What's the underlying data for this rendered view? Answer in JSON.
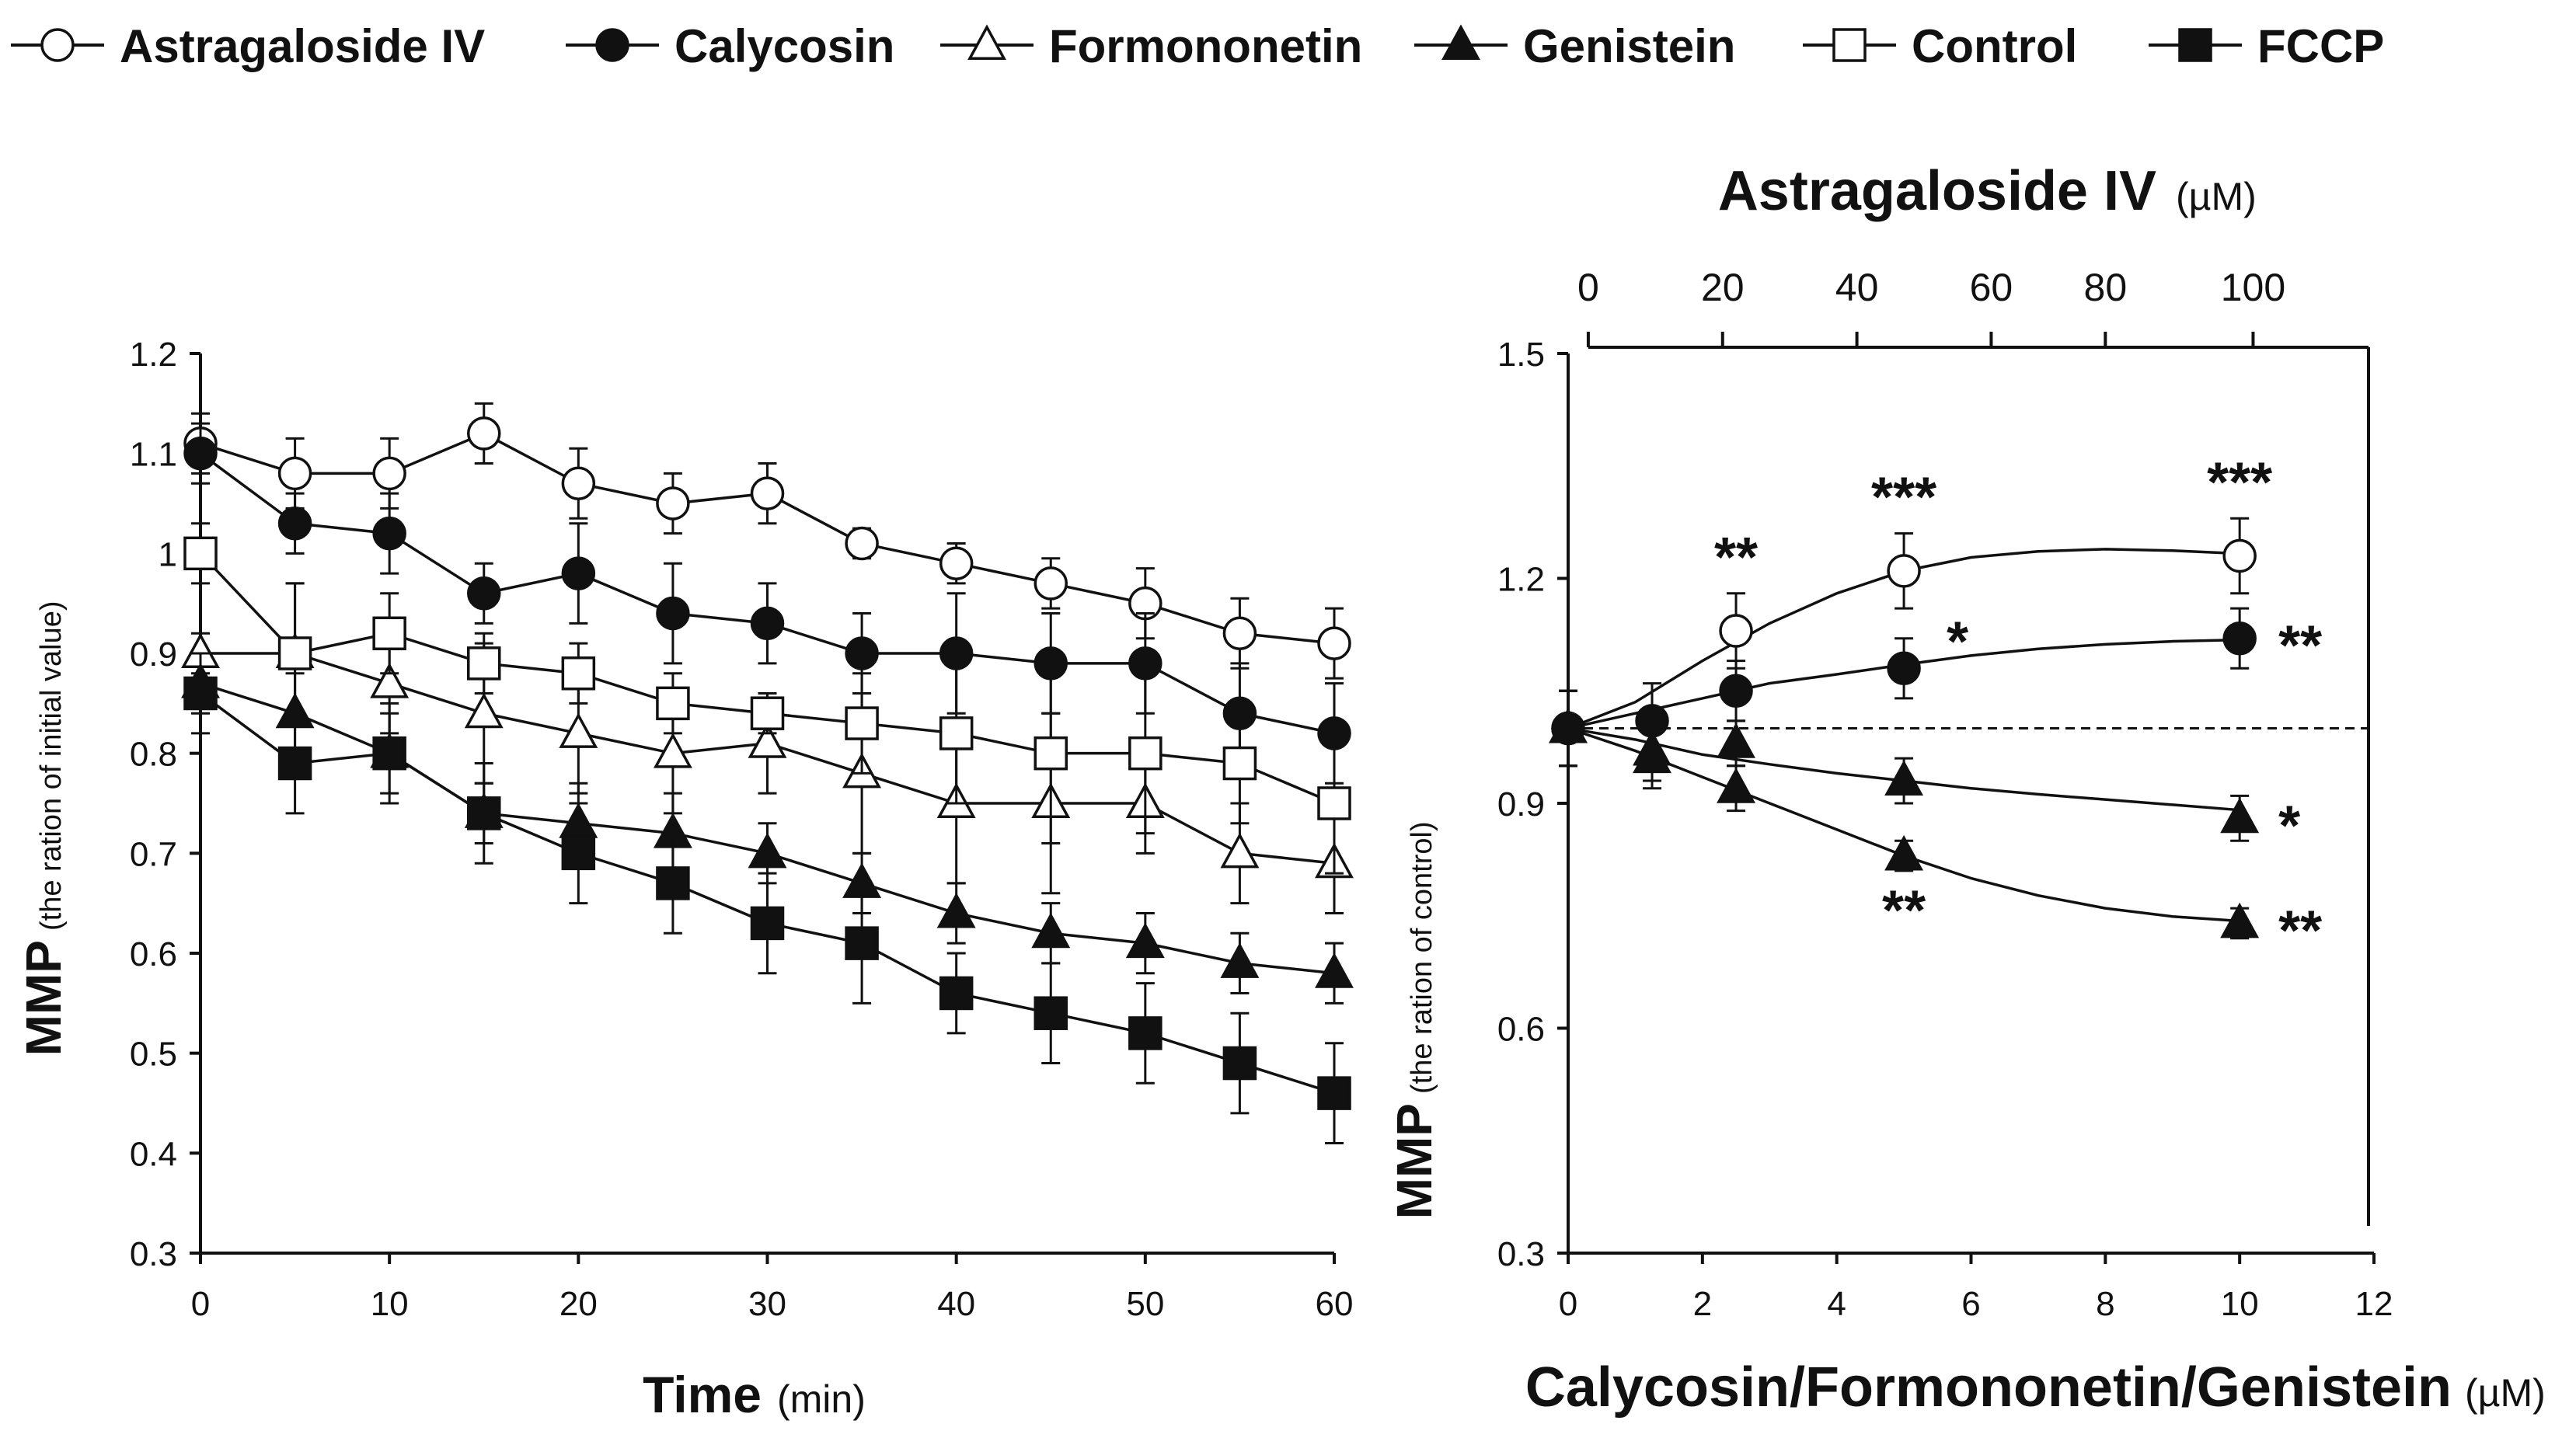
{
  "legend": [
    {
      "name": "Astragaloside IV",
      "marker": "circle",
      "filled": false
    },
    {
      "name": "Calycosin",
      "marker": "circle",
      "filled": true
    },
    {
      "name": "Formononetin",
      "marker": "triangle",
      "filled": false
    },
    {
      "name": "Genistein",
      "marker": "triangle",
      "filled": true
    },
    {
      "name": "Control",
      "marker": "square",
      "filled": false
    },
    {
      "name": "FCCP",
      "marker": "square",
      "filled": true
    }
  ],
  "chart_data": [
    {
      "type": "line",
      "title": "",
      "xlabel": "Time",
      "xlabel_unit": "(min)",
      "ylabel": "MMP",
      "ylabel_note": "(the ration of initial value)",
      "xlim": [
        0,
        60
      ],
      "ylim": [
        0.3,
        1.2
      ],
      "xticks": [
        0,
        10,
        20,
        30,
        40,
        50,
        60
      ],
      "xtick_labels": [
        "0",
        "10",
        "20",
        "30",
        "40",
        "50",
        "60"
      ],
      "yticks": [
        0.3,
        0.4,
        0.5,
        0.6,
        0.7,
        0.8,
        0.9,
        1.0,
        1.1,
        1.2
      ],
      "ytick_labels": [
        "0.3",
        "0.4",
        "0.5",
        "0.6",
        "0.7",
        "0.8",
        "0.9",
        "1",
        "1.1",
        "1.2"
      ],
      "grid": false,
      "x": [
        0,
        5,
        10,
        15,
        20,
        25,
        30,
        35,
        40,
        45,
        50,
        55,
        60
      ],
      "series": [
        {
          "name": "Astragaloside IV",
          "marker": "circle",
          "filled": false,
          "values": [
            1.11,
            1.08,
            1.08,
            1.12,
            1.07,
            1.05,
            1.06,
            1.01,
            0.99,
            0.97,
            0.95,
            0.92,
            0.91
          ],
          "errors": [
            0.03,
            0.035,
            0.035,
            0.03,
            0.035,
            0.03,
            0.03,
            0.015,
            0.02,
            0.025,
            0.035,
            0.035,
            0.035
          ]
        },
        {
          "name": "Calycosin",
          "marker": "circle",
          "filled": true,
          "values": [
            1.1,
            1.03,
            1.02,
            0.96,
            0.98,
            0.94,
            0.93,
            0.9,
            0.9,
            0.89,
            0.89,
            0.84,
            0.82
          ],
          "errors": [
            0.03,
            0.03,
            0.04,
            0.03,
            0.05,
            0.05,
            0.04,
            0.04,
            0.06,
            0.05,
            0.05,
            0.05,
            0.05
          ]
        },
        {
          "name": "Formononetin",
          "marker": "triangle",
          "filled": false,
          "values": [
            0.9,
            0.9,
            0.87,
            0.84,
            0.82,
            0.8,
            0.81,
            0.78,
            0.75,
            0.75,
            0.75,
            0.7,
            0.69
          ],
          "errors": [
            0.02,
            0.07,
            0.05,
            0.07,
            0.06,
            0.06,
            0.05,
            0.08,
            0.08,
            0.09,
            0.05,
            0.05,
            0.05
          ]
        },
        {
          "name": "Genistein",
          "marker": "triangle",
          "filled": true,
          "values": [
            0.87,
            0.84,
            0.8,
            0.74,
            0.73,
            0.72,
            0.7,
            0.67,
            0.64,
            0.62,
            0.61,
            0.59,
            0.58
          ],
          "errors": [
            0.03,
            0.04,
            0.04,
            0.03,
            0.04,
            0.04,
            0.03,
            0.03,
            0.03,
            0.03,
            0.03,
            0.03,
            0.03
          ]
        },
        {
          "name": "Control",
          "marker": "square",
          "filled": false,
          "values": [
            1.0,
            0.9,
            0.92,
            0.89,
            0.88,
            0.85,
            0.84,
            0.83,
            0.82,
            0.8,
            0.8,
            0.79,
            0.75
          ],
          "errors": [
            0.03,
            0.07,
            0.04,
            0.03,
            0.03,
            0.03,
            0.02,
            0.05,
            0.07,
            0.09,
            0.08,
            0.06,
            0.07
          ]
        },
        {
          "name": "FCCP",
          "marker": "square",
          "filled": true,
          "values": [
            0.86,
            0.79,
            0.8,
            0.74,
            0.7,
            0.67,
            0.63,
            0.61,
            0.56,
            0.54,
            0.52,
            0.49,
            0.46
          ],
          "errors": [
            0.04,
            0.05,
            0.05,
            0.05,
            0.05,
            0.05,
            0.05,
            0.06,
            0.04,
            0.05,
            0.05,
            0.05,
            0.05
          ]
        }
      ]
    },
    {
      "type": "scatter",
      "title": "",
      "xlabel": "Calycosin/Formononetin/Genistein",
      "xlabel_unit": "(µM)",
      "top_xlabel": "Astragaloside IV",
      "top_xlabel_unit": "(µM)",
      "ylabel": "MMP",
      "ylabel_note": "(the ration of control)",
      "xlim": [
        0,
        12
      ],
      "ylim": [
        0.3,
        1.5
      ],
      "xticks": [
        0,
        2,
        4,
        6,
        8,
        10,
        12
      ],
      "xtick_labels": [
        "0",
        "2",
        "4",
        "6",
        "8",
        "10",
        "12"
      ],
      "yticks": [
        0.3,
        0.6,
        0.9,
        1.2,
        1.5
      ],
      "ytick_labels": [
        "0.3",
        "0.6",
        "0.9",
        "1.2",
        "1.5"
      ],
      "top_xticks": [
        0,
        20,
        40,
        60,
        80,
        100
      ],
      "top_xtick_positions": [
        0.3,
        2.3,
        4.3,
        6.3,
        8.0,
        10.2
      ],
      "top_xtick_labels": [
        "0",
        "20",
        "40",
        "60",
        "80",
        "100"
      ],
      "reference_line": 1.0,
      "grid": false,
      "series": [
        {
          "name": "Astragaloside IV",
          "marker": "circle",
          "filled": false,
          "x": [
            0,
            2.5,
            5,
            10
          ],
          "values": [
            1.0,
            1.13,
            1.21,
            1.23
          ],
          "errors": [
            0.05,
            0.05,
            0.05,
            0.05
          ],
          "curve": [
            [
              0,
              1.0
            ],
            [
              1,
              1.035
            ],
            [
              2,
              1.09
            ],
            [
              3,
              1.14
            ],
            [
              4,
              1.18
            ],
            [
              5,
              1.21
            ],
            [
              6,
              1.228
            ],
            [
              7,
              1.236
            ],
            [
              8,
              1.239
            ],
            [
              9,
              1.237
            ],
            [
              10,
              1.233
            ]
          ],
          "annotations": [
            {
              "x": 2.5,
              "label": "**",
              "pos": "above"
            },
            {
              "x": 5,
              "label": "***",
              "pos": "above"
            },
            {
              "x": 10,
              "label": "***",
              "pos": "above"
            }
          ]
        },
        {
          "name": "Calycosin",
          "marker": "circle",
          "filled": true,
          "x": [
            0,
            1.25,
            2.5,
            5,
            10
          ],
          "values": [
            1.0,
            1.01,
            1.05,
            1.08,
            1.12
          ],
          "errors": [
            0.05,
            0.05,
            0.04,
            0.04,
            0.04
          ],
          "curve": [
            [
              0,
              1.0
            ],
            [
              1,
              1.02
            ],
            [
              2,
              1.04
            ],
            [
              3,
              1.06
            ],
            [
              4,
              1.072
            ],
            [
              5,
              1.085
            ],
            [
              6,
              1.097
            ],
            [
              7,
              1.106
            ],
            [
              8,
              1.112
            ],
            [
              9,
              1.116
            ],
            [
              10,
              1.118
            ]
          ],
          "annotations": [
            {
              "x": 5,
              "label": "*",
              "pos": "right"
            },
            {
              "x": 10,
              "label": "**",
              "pos": "right"
            }
          ]
        },
        {
          "name": "Formononetin",
          "marker": "triangle",
          "filled": true,
          "x": [
            0,
            1.25,
            2.5,
            5,
            10
          ],
          "values": [
            1.0,
            0.97,
            0.98,
            0.93,
            0.88
          ],
          "errors": [
            0.05,
            0.04,
            0.03,
            0.03,
            0.03
          ],
          "curve": [
            [
              0,
              1.0
            ],
            [
              1,
              0.985
            ],
            [
              2,
              0.965
            ],
            [
              3,
              0.952
            ],
            [
              4,
              0.94
            ],
            [
              5,
              0.93
            ],
            [
              6,
              0.92
            ],
            [
              7,
              0.912
            ],
            [
              8,
              0.905
            ],
            [
              9,
              0.898
            ],
            [
              10,
              0.891
            ]
          ],
          "annotations": [
            {
              "x": 10,
              "label": "*",
              "pos": "right"
            }
          ]
        },
        {
          "name": "Genistein",
          "marker": "triangle",
          "filled": true,
          "x": [
            0,
            1.25,
            2.5,
            5,
            10
          ],
          "values": [
            1.0,
            0.96,
            0.92,
            0.83,
            0.74
          ],
          "errors": [
            0.05,
            0.04,
            0.03,
            0.02,
            0.02
          ],
          "curve": [
            [
              0,
              1.0
            ],
            [
              1,
              0.97
            ],
            [
              2,
              0.935
            ],
            [
              3,
              0.9
            ],
            [
              4,
              0.865
            ],
            [
              5,
              0.83
            ],
            [
              6,
              0.8
            ],
            [
              7,
              0.777
            ],
            [
              8,
              0.76
            ],
            [
              9,
              0.749
            ],
            [
              10,
              0.743
            ]
          ],
          "annotations": [
            {
              "x": 5,
              "label": "**",
              "pos": "below"
            },
            {
              "x": 10,
              "label": "**",
              "pos": "right"
            }
          ]
        }
      ]
    }
  ]
}
